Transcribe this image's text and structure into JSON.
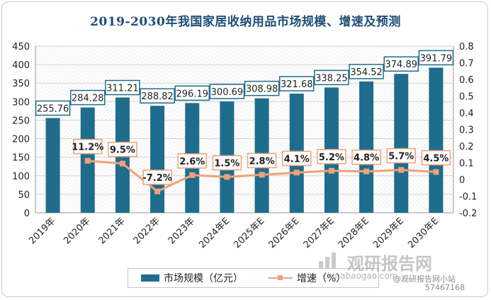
{
  "chart_data": {
    "type": "bar+line",
    "title": "2019-2030年我国家居收纳用品市场规模、增速及预测",
    "categories": [
      "2019年",
      "2020年",
      "2021年",
      "2022年",
      "2023年",
      "2024年E",
      "2025年E",
      "2026年E",
      "2027年E",
      "2028年E",
      "2029年E",
      "2030年E"
    ],
    "series": [
      {
        "name": "市场规模（亿元）",
        "type": "bar",
        "axis": "left",
        "values": [
          255.76,
          284.28,
          311.21,
          288.82,
          296.19,
          300.69,
          308.98,
          321.68,
          338.25,
          354.52,
          374.89,
          391.79
        ],
        "labels": [
          "255.76",
          "284.28",
          "311.21",
          "288.82",
          "296.19",
          "300.69",
          "308.98",
          "321.68",
          "338.25",
          "354.52",
          "374.89",
          "391.79"
        ]
      },
      {
        "name": "增速（%）",
        "type": "line",
        "axis": "right",
        "values": [
          null,
          0.112,
          0.095,
          -0.072,
          0.026,
          0.015,
          0.028,
          0.041,
          0.052,
          0.048,
          0.057,
          0.045
        ],
        "labels": [
          "",
          "11.2%",
          "9.5%",
          "-7.2%",
          "2.6%",
          "1.5%",
          "2.8%",
          "4.1%",
          "5.2%",
          "4.8%",
          "5.7%",
          "4.5%"
        ]
      }
    ],
    "y_left": {
      "min": 0,
      "max": 450,
      "ticks": [
        "0",
        "50",
        "100",
        "150",
        "200",
        "250",
        "300",
        "350",
        "400",
        "450"
      ]
    },
    "y_right": {
      "min": -0.2,
      "max": 0.8,
      "ticks": [
        "-0.2",
        "-0.1",
        "0",
        "0.1",
        "0.2",
        "0.3",
        "0.4",
        "0.5",
        "0.6",
        "0.7",
        "0.8"
      ]
    },
    "grid": true,
    "legend_position": "bottom",
    "colors": {
      "bar": "#1f6d8c",
      "line": "#f0a179",
      "title": "#1f4e79"
    }
  },
  "legend": {
    "bar_label": "市场规模（亿元）",
    "line_label": "增速（%）"
  },
  "watermark": {
    "brand": "观研报告网",
    "url": "chinabaogao.com",
    "social": "@观研报告网小站",
    "id": "57467168"
  }
}
